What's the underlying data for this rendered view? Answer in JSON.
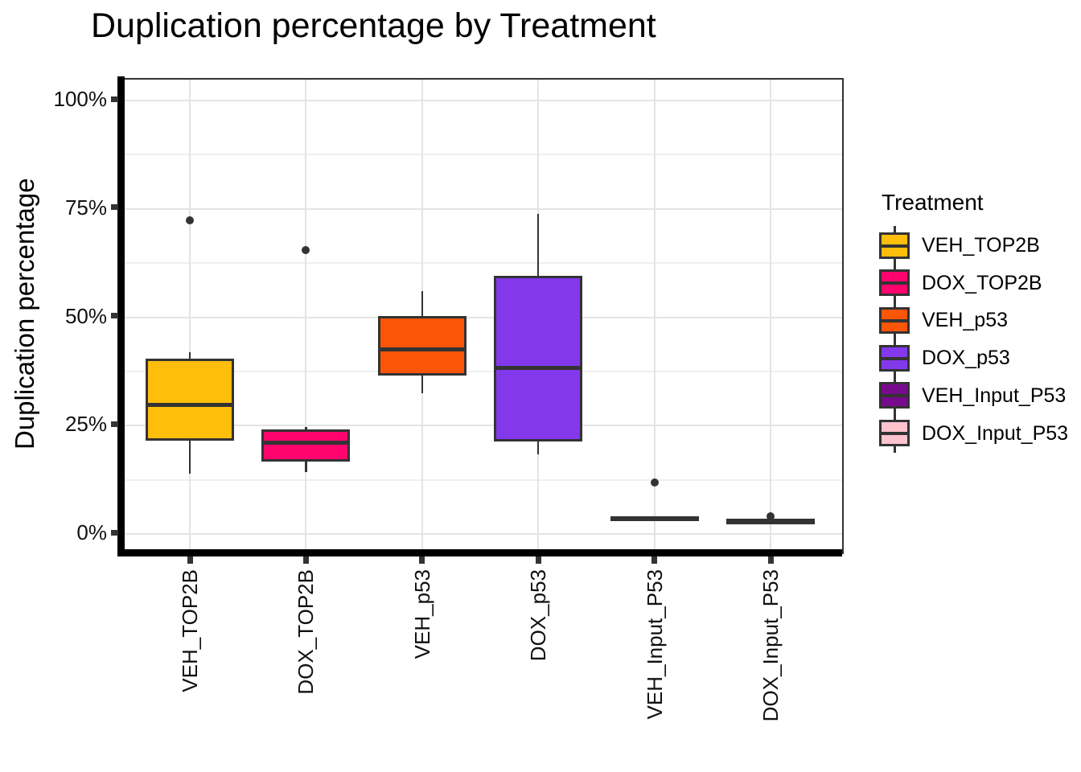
{
  "page": {
    "title": "Duplication percentage by Treatment"
  },
  "colors": {
    "axis": "#000000",
    "panel_border": "#333333",
    "box_border": "#333333",
    "median": "#333333",
    "outlier": "#333333",
    "tick": "#333333",
    "grid_major": "#E3E3E3",
    "grid_minor": "#EFEFEF",
    "background": "#FFFFFF"
  },
  "chart_data": {
    "type": "boxplot",
    "title": "Duplication percentage by Treatment",
    "xlabel": "",
    "ylabel": "Duplication percentage",
    "ylim": [
      0,
      100
    ],
    "grid": true,
    "y_ticks": [
      {
        "value": 0,
        "label": "0%"
      },
      {
        "value": 25,
        "label": "25%"
      },
      {
        "value": 50,
        "label": "50%"
      },
      {
        "value": 75,
        "label": "75%"
      },
      {
        "value": 100,
        "label": "100%"
      }
    ],
    "y_minor_ticks": [
      12.5,
      37.5,
      62.5,
      87.5
    ],
    "categories": [
      "VEH_TOP2B",
      "DOX_TOP2B",
      "VEH_p53",
      "DOX_p53",
      "VEH_Input_P53",
      "DOX_Input_P53"
    ],
    "legend": {
      "title": "Treatment",
      "position": "right"
    },
    "series": [
      {
        "name": "VEH_TOP2B",
        "color": "#FFBE0B",
        "whisker_low": 14.0,
        "q1": 21.9,
        "median": 29.8,
        "q3": 40.0,
        "whisker_high": 42.0,
        "outliers": [
          72.4
        ]
      },
      {
        "name": "DOX_TOP2B",
        "color": "#FF046D",
        "whisker_low": 14.3,
        "q1": 17.1,
        "median": 21.1,
        "q3": 23.7,
        "whisker_high": 24.6,
        "outliers": [
          65.4
        ]
      },
      {
        "name": "VEH_p53",
        "color": "#FB5607",
        "whisker_low": 32.4,
        "q1": 37.0,
        "median": 42.5,
        "q3": 50.0,
        "whisker_high": 56.1,
        "outliers": []
      },
      {
        "name": "DOX_p53",
        "color": "#8338EC",
        "whisker_low": 18.3,
        "q1": 21.7,
        "median": 38.3,
        "q3": 59.1,
        "whisker_high": 73.9,
        "outliers": []
      },
      {
        "name": "VEH_Input_P53",
        "color": "#780A8C",
        "whisker_low": 3.7,
        "q1": 3.7,
        "median": 3.7,
        "q3": 3.7,
        "whisker_high": 3.7,
        "outliers": [
          11.9
        ]
      },
      {
        "name": "DOX_Input_P53",
        "color": "#FFC2CF",
        "whisker_low": 3.0,
        "q1": 3.0,
        "median": 3.0,
        "q3": 3.0,
        "whisker_high": 3.0,
        "outliers": [
          4.0
        ]
      }
    ]
  }
}
